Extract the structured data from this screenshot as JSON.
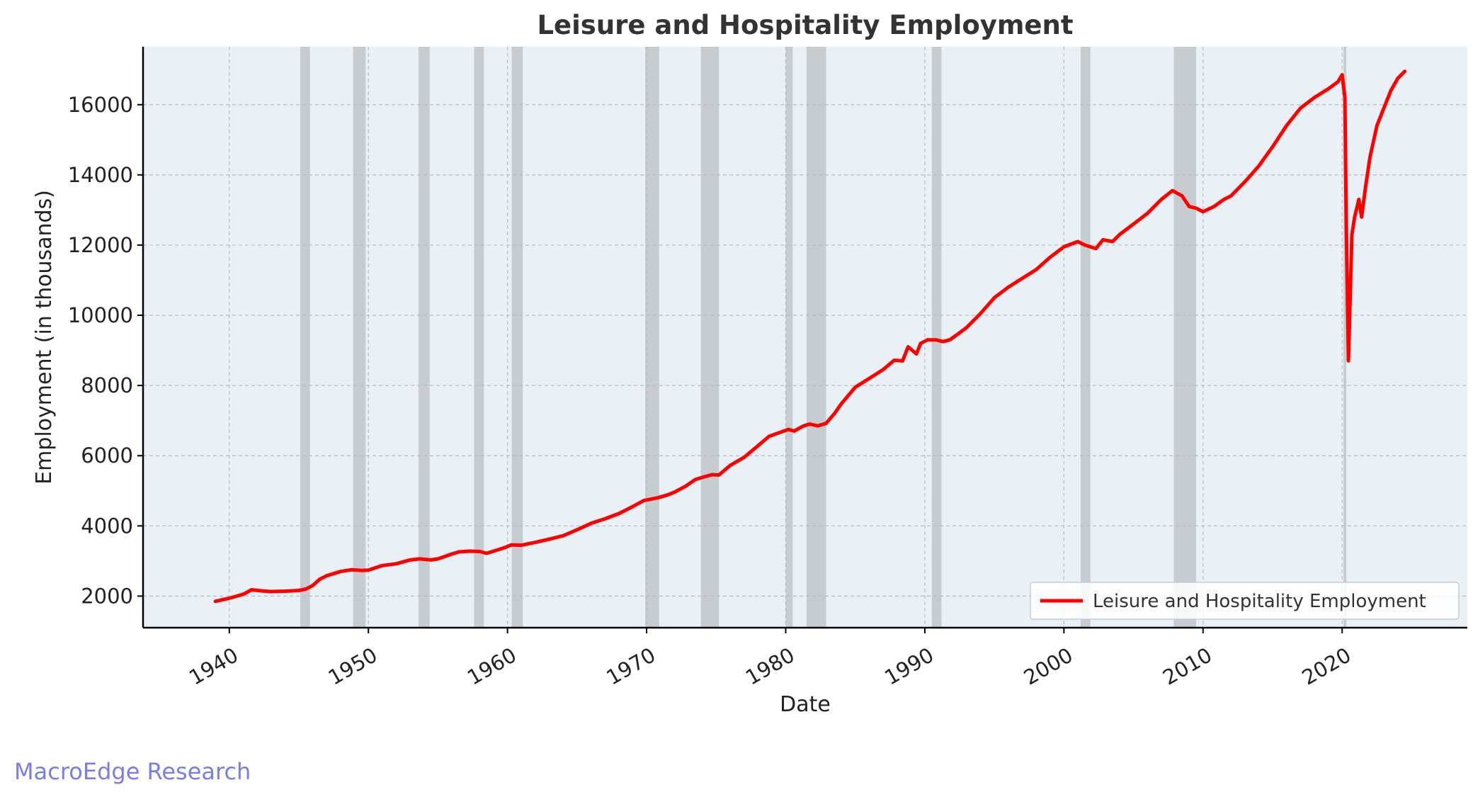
{
  "chart_data": {
    "type": "line",
    "title": "Leisure and Hospitality Employment",
    "xlabel": "Date",
    "ylabel": "Employment (in thousands)",
    "xlim": [
      1933.8,
      2029.0
    ],
    "ylim": [
      1100,
      17650
    ],
    "x_ticks": [
      1940,
      1950,
      1960,
      1970,
      1980,
      1990,
      2000,
      2010,
      2020
    ],
    "y_ticks": [
      2000,
      4000,
      6000,
      8000,
      10000,
      12000,
      14000,
      16000
    ],
    "grid": true,
    "legend_position": "lower-right",
    "colors": {
      "series": "#ff0000",
      "plot_background": "#e9f0f6",
      "recession": "#b4b8bc"
    },
    "recessions": [
      [
        1945.1,
        1945.8
      ],
      [
        1948.9,
        1949.8
      ],
      [
        1953.6,
        1954.4
      ],
      [
        1957.6,
        1958.3
      ],
      [
        1960.3,
        1961.1
      ],
      [
        1969.9,
        1970.9
      ],
      [
        1973.9,
        1975.2
      ],
      [
        1980.0,
        1980.5
      ],
      [
        1981.5,
        1982.9
      ],
      [
        1990.5,
        1991.2
      ],
      [
        2001.2,
        2001.9
      ],
      [
        2007.9,
        2009.5
      ],
      [
        2020.1,
        2020.3
      ]
    ],
    "series": [
      {
        "name": "Leisure and Hospitality Employment",
        "x": [
          1939.0,
          1940.0,
          1941.0,
          1941.6,
          1942.3,
          1943.0,
          1944.0,
          1945.0,
          1945.5,
          1946.0,
          1946.5,
          1947.0,
          1948.0,
          1948.8,
          1949.5,
          1950.0,
          1951.0,
          1952.0,
          1953.0,
          1953.7,
          1954.5,
          1955.0,
          1956.0,
          1956.5,
          1957.3,
          1958.0,
          1958.5,
          1959.0,
          1959.8,
          1960.3,
          1961.0,
          1962.0,
          1963.0,
          1964.0,
          1965.0,
          1966.0,
          1967.0,
          1968.0,
          1969.0,
          1969.8,
          1970.8,
          1971.5,
          1972.0,
          1972.8,
          1973.5,
          1974.0,
          1974.7,
          1975.2,
          1976.0,
          1977.0,
          1978.0,
          1978.8,
          1979.5,
          1980.2,
          1980.6,
          1981.3,
          1981.7,
          1982.3,
          1982.9,
          1983.5,
          1984.0,
          1985.0,
          1986.0,
          1987.0,
          1987.8,
          1988.4,
          1988.8,
          1989.4,
          1989.7,
          1990.2,
          1990.8,
          1991.3,
          1991.8,
          1992.5,
          1993.0,
          1994.0,
          1995.0,
          1996.0,
          1997.0,
          1998.0,
          1999.0,
          2000.0,
          2001.0,
          2001.5,
          2002.3,
          2002.8,
          2003.5,
          2004.0,
          2005.0,
          2006.0,
          2007.0,
          2007.8,
          2008.5,
          2009.0,
          2009.5,
          2010.0,
          2010.8,
          2011.5,
          2012.0,
          2013.0,
          2014.0,
          2015.0,
          2016.0,
          2017.0,
          2018.0,
          2019.0,
          2019.7,
          2020.0,
          2020.2,
          2020.3,
          2020.45,
          2020.7,
          2020.9,
          2021.2,
          2021.4,
          2021.7,
          2022.0,
          2022.5,
          2023.0,
          2023.5,
          2024.0,
          2024.5
        ],
        "values": [
          1850,
          1940,
          2050,
          2180,
          2150,
          2130,
          2140,
          2160,
          2200,
          2300,
          2480,
          2580,
          2700,
          2750,
          2730,
          2740,
          2870,
          2920,
          3030,
          3060,
          3030,
          3060,
          3200,
          3260,
          3280,
          3270,
          3220,
          3280,
          3380,
          3460,
          3450,
          3530,
          3620,
          3720,
          3890,
          4070,
          4200,
          4350,
          4550,
          4720,
          4800,
          4880,
          4960,
          5130,
          5320,
          5380,
          5460,
          5450,
          5720,
          5950,
          6280,
          6550,
          6650,
          6750,
          6700,
          6850,
          6900,
          6850,
          6920,
          7200,
          7480,
          7950,
          8200,
          8450,
          8720,
          8700,
          9100,
          8900,
          9200,
          9300,
          9300,
          9250,
          9300,
          9500,
          9650,
          10050,
          10500,
          10800,
          11050,
          11300,
          11650,
          11950,
          12100,
          12000,
          11900,
          12150,
          12100,
          12300,
          12600,
          12900,
          13300,
          13550,
          13400,
          13100,
          13050,
          12950,
          13100,
          13300,
          13400,
          13800,
          14250,
          14800,
          15400,
          15900,
          16200,
          16450,
          16650,
          16850,
          16200,
          12500,
          8700,
          12300,
          12800,
          13300,
          12800,
          13700,
          14500,
          15400,
          15900,
          16400,
          16750,
          16950
        ]
      }
    ]
  },
  "watermark": "MacroEdge Research"
}
